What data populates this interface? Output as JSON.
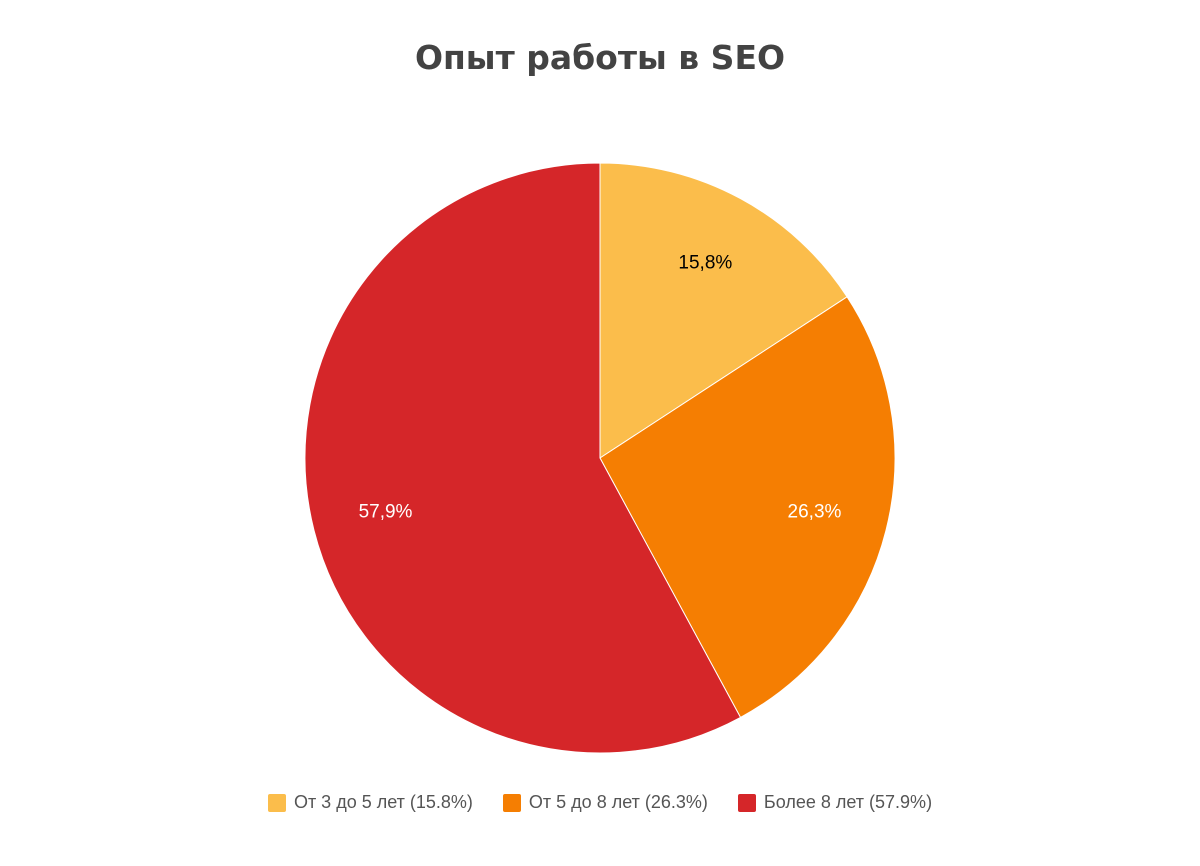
{
  "chart_data": {
    "type": "pie",
    "title": "Опыт работы в SEO",
    "slices": [
      {
        "name": "От 3 до 5 лет",
        "value": 15.8,
        "label": "15,8%",
        "legend": "От 3 до 5 лет (15.8%)",
        "color": "#FBBD4B",
        "label_color": "#000000"
      },
      {
        "name": "От 5 до 8 лет",
        "value": 26.3,
        "label": "26,3%",
        "legend": "От 5 до 8 лет (26.3%)",
        "color": "#F57E02",
        "label_color": "#ffffff"
      },
      {
        "name": "Более 8 лет",
        "value": 57.9,
        "label": "57,9%",
        "legend": "Более 8 лет (57.9%)",
        "color": "#D52629",
        "label_color": "#ffffff"
      }
    ],
    "start_angle": "top",
    "direction": "clockwise",
    "legend_position": "bottom"
  }
}
